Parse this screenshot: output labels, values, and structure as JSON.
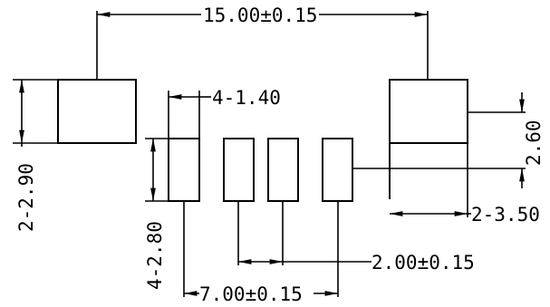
{
  "dimensions": {
    "overall_span": "15.00±0.15",
    "lead_width": "4-1.40",
    "side_pad_height": "2-2.90",
    "lead_height": "4-2.80",
    "lead_span": "7.00±0.15",
    "lead_pitch": "2.00±0.15",
    "tab_height": "2.60",
    "tab_width": "2-3.50"
  }
}
